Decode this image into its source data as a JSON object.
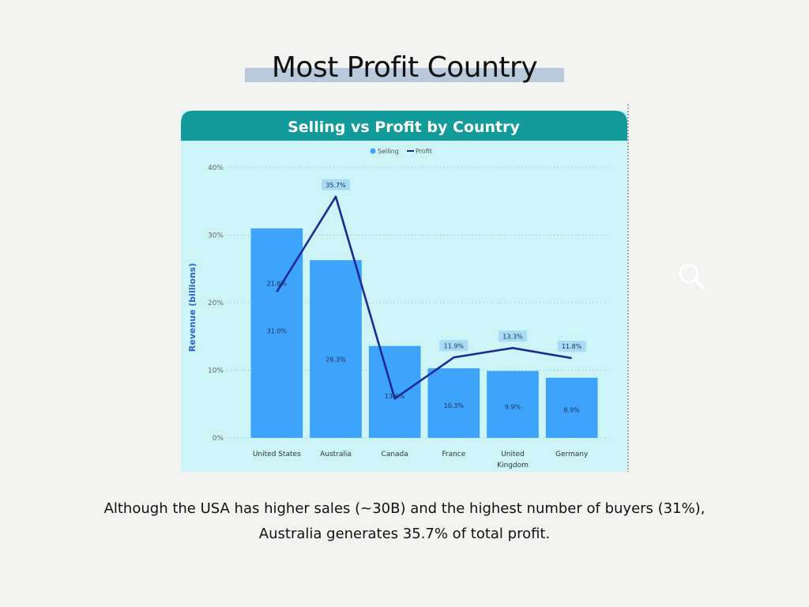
{
  "slide": {
    "title": "Most Profit Country",
    "caption_line1": "Although the USA has higher sales (~30B) and the highest number of buyers (31%),",
    "caption_line2": "Australia generates 35.7% of total profit."
  },
  "icons": {
    "magnifier": "search-icon"
  },
  "colors": {
    "header": "#139a9b",
    "plot_bg": "#cdf4f7",
    "bar": "#3ea4fb",
    "line": "#1d2a94",
    "label_box": "#a8dbf5"
  },
  "chart_data": {
    "type": "bar",
    "title": "Selling vs Profit by Country",
    "xlabel": "",
    "ylabel": "Revenue (billions)",
    "categories": [
      "United States",
      "Australia",
      "Canada",
      "France",
      "United Kingdom",
      "Germany"
    ],
    "yticks": [
      "0%",
      "10%",
      "20%",
      "30%",
      "40%"
    ],
    "ylim": [
      0,
      40
    ],
    "legend": {
      "placement": "top-center",
      "entries": [
        "Selling",
        "Profit"
      ]
    },
    "grid": true,
    "series": [
      {
        "name": "Selling",
        "kind": "bar",
        "values": [
          31.0,
          26.3,
          13.6,
          10.3,
          9.9,
          8.9
        ],
        "labels": [
          "31.0%",
          "26.3%",
          "13.6%",
          "10.3%",
          "9.9%",
          "8.9%"
        ]
      },
      {
        "name": "Profit",
        "kind": "line",
        "values": [
          21.6,
          35.7,
          5.8,
          11.9,
          13.3,
          11.8
        ],
        "labels": [
          "21.6%",
          "35.7%",
          "",
          "11.9%",
          "13.3%",
          "11.8%"
        ]
      }
    ]
  }
}
